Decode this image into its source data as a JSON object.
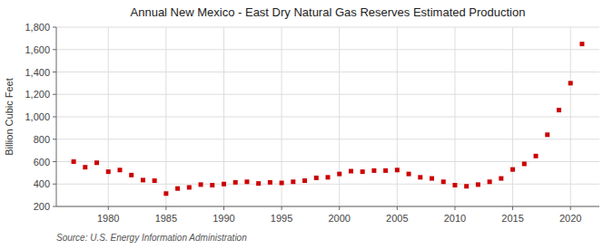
{
  "chart_data": {
    "type": "scatter",
    "title": "Annual New Mexico - East Dry Natural Gas Reserves Estimated Production",
    "ylabel": "Billion Cubic Feet",
    "source": "Source: U.S. Energy Information Administration",
    "x": [
      1977,
      1978,
      1979,
      1980,
      1981,
      1982,
      1983,
      1984,
      1985,
      1986,
      1987,
      1988,
      1989,
      1990,
      1991,
      1992,
      1993,
      1994,
      1995,
      1996,
      1997,
      1998,
      1999,
      2000,
      2001,
      2002,
      2003,
      2004,
      2005,
      2006,
      2007,
      2008,
      2009,
      2010,
      2011,
      2012,
      2013,
      2014,
      2015,
      2016,
      2017,
      2018,
      2019,
      2020,
      2021
    ],
    "values": [
      600,
      550,
      590,
      510,
      525,
      480,
      435,
      430,
      315,
      360,
      370,
      395,
      390,
      400,
      415,
      420,
      405,
      415,
      410,
      420,
      430,
      455,
      460,
      490,
      515,
      510,
      520,
      520,
      525,
      490,
      460,
      450,
      420,
      390,
      380,
      395,
      420,
      450,
      530,
      580,
      650,
      840,
      1060,
      1300,
      1650
    ],
    "color": "#cc0000",
    "marker": "square",
    "xlim": [
      1975.5,
      2022.5
    ],
    "xticks": [
      1980,
      1985,
      1990,
      1995,
      2000,
      2005,
      2010,
      2015,
      2020
    ],
    "ylim": [
      200,
      1800
    ],
    "yticks": [
      200,
      400,
      600,
      800,
      {
        "value": 1000,
        "label": "1,000"
      },
      {
        "value": 1200,
        "label": "1,200"
      },
      {
        "value": 1400,
        "label": "1,400"
      },
      {
        "value": 1600,
        "label": "1,600"
      },
      {
        "value": 1800,
        "label": "1,800"
      }
    ],
    "grid": true
  }
}
